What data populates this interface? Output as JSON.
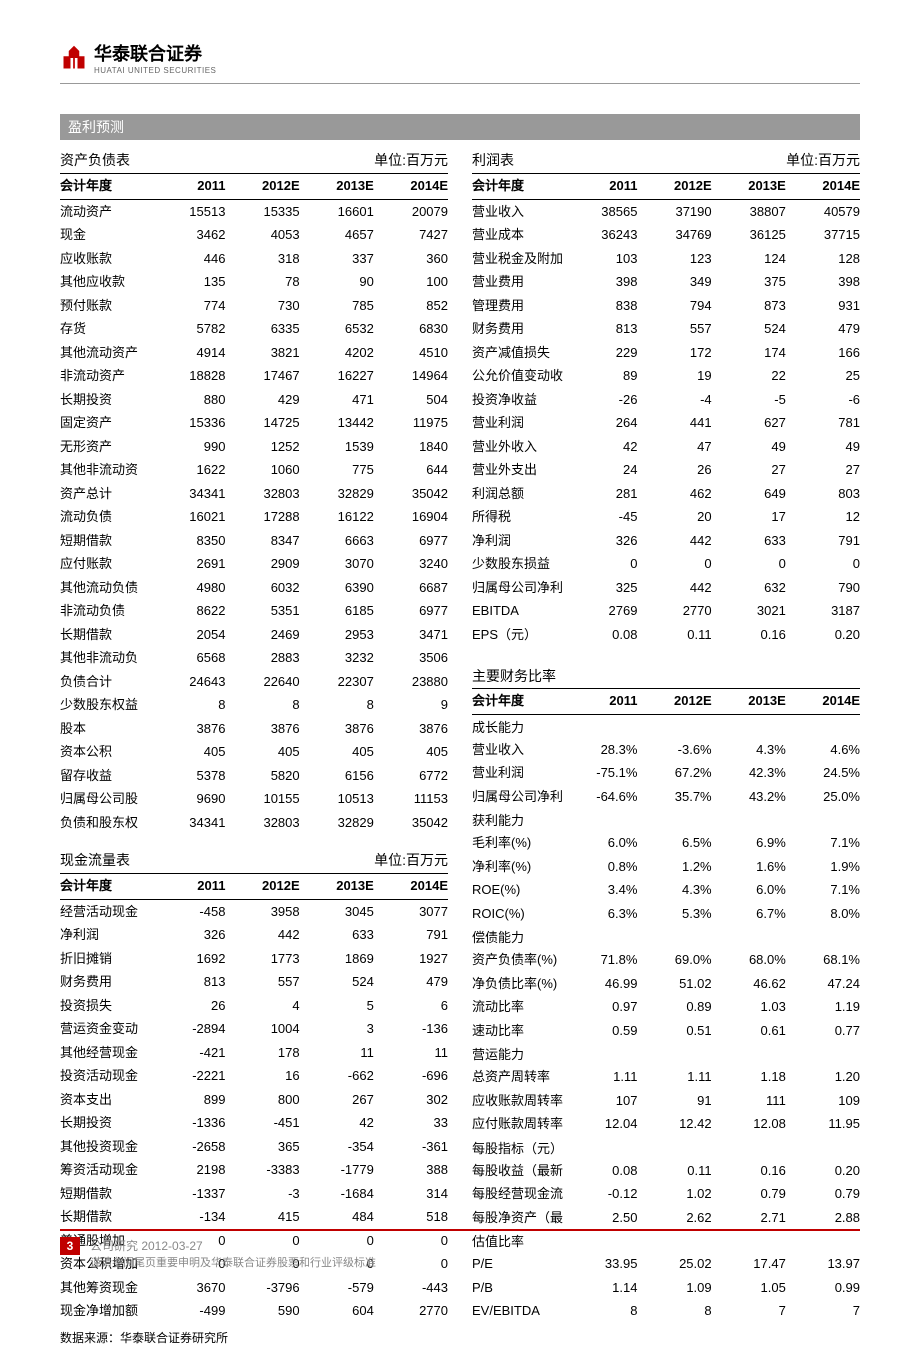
{
  "header": {
    "logo_cn": "华泰联合证券",
    "logo_en": "HUATAI UNITED SECURITIES",
    "logo_color": "#c00000"
  },
  "section_title": "盈利预测",
  "years": [
    "2011",
    "2012E",
    "2013E",
    "2014E"
  ],
  "year_label": "会计年度",
  "unit_label": "单位:百万元",
  "balance": {
    "title": "资产负债表",
    "rows": [
      [
        "流动资产",
        "15513",
        "15335",
        "16601",
        "20079"
      ],
      [
        "现金",
        "3462",
        "4053",
        "4657",
        "7427"
      ],
      [
        "应收账款",
        "446",
        "318",
        "337",
        "360"
      ],
      [
        "其他应收款",
        "135",
        "78",
        "90",
        "100"
      ],
      [
        "预付账款",
        "774",
        "730",
        "785",
        "852"
      ],
      [
        "存货",
        "5782",
        "6335",
        "6532",
        "6830"
      ],
      [
        "其他流动资产",
        "4914",
        "3821",
        "4202",
        "4510"
      ],
      [
        "非流动资产",
        "18828",
        "17467",
        "16227",
        "14964"
      ],
      [
        "长期投资",
        "880",
        "429",
        "471",
        "504"
      ],
      [
        "固定资产",
        "15336",
        "14725",
        "13442",
        "11975"
      ],
      [
        "无形资产",
        "990",
        "1252",
        "1539",
        "1840"
      ],
      [
        "其他非流动资",
        "1622",
        "1060",
        "775",
        "644"
      ],
      [
        "资产总计",
        "34341",
        "32803",
        "32829",
        "35042"
      ],
      [
        "流动负债",
        "16021",
        "17288",
        "16122",
        "16904"
      ],
      [
        "短期借款",
        "8350",
        "8347",
        "6663",
        "6977"
      ],
      [
        "应付账款",
        "2691",
        "2909",
        "3070",
        "3240"
      ],
      [
        "其他流动负债",
        "4980",
        "6032",
        "6390",
        "6687"
      ],
      [
        "非流动负债",
        "8622",
        "5351",
        "6185",
        "6977"
      ],
      [
        "长期借款",
        "2054",
        "2469",
        "2953",
        "3471"
      ],
      [
        "其他非流动负",
        "6568",
        "2883",
        "3232",
        "3506"
      ],
      [
        "负债合计",
        "24643",
        "22640",
        "22307",
        "23880"
      ],
      [
        "少数股东权益",
        "8",
        "8",
        "8",
        "9"
      ],
      [
        "股本",
        "3876",
        "3876",
        "3876",
        "3876"
      ],
      [
        "资本公积",
        "405",
        "405",
        "405",
        "405"
      ],
      [
        "留存收益",
        "5378",
        "5820",
        "6156",
        "6772"
      ],
      [
        "归属母公司股",
        "9690",
        "10155",
        "10513",
        "11153"
      ],
      [
        "负债和股东权",
        "34341",
        "32803",
        "32829",
        "35042"
      ]
    ]
  },
  "cashflow": {
    "title": "现金流量表",
    "rows": [
      [
        "经营活动现金",
        "-458",
        "3958",
        "3045",
        "3077"
      ],
      [
        "净利润",
        "326",
        "442",
        "633",
        "791"
      ],
      [
        "折旧摊销",
        "1692",
        "1773",
        "1869",
        "1927"
      ],
      [
        "财务费用",
        "813",
        "557",
        "524",
        "479"
      ],
      [
        "投资损失",
        "26",
        "4",
        "5",
        "6"
      ],
      [
        "营运资金变动",
        "-2894",
        "1004",
        "3",
        "-136"
      ],
      [
        "其他经营现金",
        "-421",
        "178",
        "11",
        "11"
      ],
      [
        "投资活动现金",
        "-2221",
        "16",
        "-662",
        "-696"
      ],
      [
        "资本支出",
        "899",
        "800",
        "267",
        "302"
      ],
      [
        "长期投资",
        "-1336",
        "-451",
        "42",
        "33"
      ],
      [
        "其他投资现金",
        "-2658",
        "365",
        "-354",
        "-361"
      ],
      [
        "筹资活动现金",
        "2198",
        "-3383",
        "-1779",
        "388"
      ],
      [
        "短期借款",
        "-1337",
        "-3",
        "-1684",
        "314"
      ],
      [
        "长期借款",
        "-134",
        "415",
        "484",
        "518"
      ],
      [
        "普通股增加",
        "0",
        "0",
        "0",
        "0"
      ],
      [
        "资本公积增加",
        "0",
        "0",
        "0",
        "0"
      ],
      [
        "其他筹资现金",
        "3670",
        "-3796",
        "-579",
        "-443"
      ],
      [
        "现金净增加额",
        "-499",
        "590",
        "604",
        "2770"
      ]
    ]
  },
  "income": {
    "title": "利润表",
    "rows": [
      [
        "营业收入",
        "38565",
        "37190",
        "38807",
        "40579"
      ],
      [
        "营业成本",
        "36243",
        "34769",
        "36125",
        "37715"
      ],
      [
        "营业税金及附加",
        "103",
        "123",
        "124",
        "128"
      ],
      [
        "营业费用",
        "398",
        "349",
        "375",
        "398"
      ],
      [
        "管理费用",
        "838",
        "794",
        "873",
        "931"
      ],
      [
        "财务费用",
        "813",
        "557",
        "524",
        "479"
      ],
      [
        "资产减值损失",
        "229",
        "172",
        "174",
        "166"
      ],
      [
        "公允价值变动收",
        "89",
        "19",
        "22",
        "25"
      ],
      [
        "投资净收益",
        "-26",
        "-4",
        "-5",
        "-6"
      ],
      [
        "营业利润",
        "264",
        "441",
        "627",
        "781"
      ],
      [
        "营业外收入",
        "42",
        "47",
        "49",
        "49"
      ],
      [
        "营业外支出",
        "24",
        "26",
        "27",
        "27"
      ],
      [
        "利润总额",
        "281",
        "462",
        "649",
        "803"
      ],
      [
        "所得税",
        "-45",
        "20",
        "17",
        "12"
      ],
      [
        "净利润",
        "326",
        "442",
        "633",
        "791"
      ],
      [
        "少数股东损益",
        "0",
        "0",
        "0",
        "0"
      ],
      [
        "归属母公司净利",
        "325",
        "442",
        "632",
        "790"
      ],
      [
        "EBITDA",
        "2769",
        "2770",
        "3021",
        "3187"
      ],
      [
        "EPS（元）",
        "0.08",
        "0.11",
        "0.16",
        "0.20"
      ]
    ]
  },
  "ratios": {
    "title": "主要财务比率",
    "sections": [
      {
        "name": "成长能力",
        "rows": [
          [
            "营业收入",
            "28.3%",
            "-3.6%",
            "4.3%",
            "4.6%"
          ],
          [
            "营业利润",
            "-75.1%",
            "67.2%",
            "42.3%",
            "24.5%"
          ],
          [
            "归属母公司净利",
            "-64.6%",
            "35.7%",
            "43.2%",
            "25.0%"
          ]
        ]
      },
      {
        "name": "获利能力",
        "rows": [
          [
            "毛利率(%)",
            "6.0%",
            "6.5%",
            "6.9%",
            "7.1%"
          ],
          [
            "净利率(%)",
            "0.8%",
            "1.2%",
            "1.6%",
            "1.9%"
          ],
          [
            "ROE(%)",
            "3.4%",
            "4.3%",
            "6.0%",
            "7.1%"
          ],
          [
            "ROIC(%)",
            "6.3%",
            "5.3%",
            "6.7%",
            "8.0%"
          ]
        ]
      },
      {
        "name": "偿债能力",
        "rows": [
          [
            "资产负债率(%)",
            "71.8%",
            "69.0%",
            "68.0%",
            "68.1%"
          ],
          [
            "净负债比率(%)",
            "46.99",
            "51.02",
            "46.62",
            "47.24"
          ],
          [
            "流动比率",
            "0.97",
            "0.89",
            "1.03",
            "1.19"
          ],
          [
            "速动比率",
            "0.59",
            "0.51",
            "0.61",
            "0.77"
          ]
        ]
      },
      {
        "name": "营运能力",
        "rows": [
          [
            "总资产周转率",
            "1.11",
            "1.11",
            "1.18",
            "1.20"
          ],
          [
            "应收账款周转率",
            "107",
            "91",
            "111",
            "109"
          ],
          [
            "应付账款周转率",
            "12.04",
            "12.42",
            "12.08",
            "11.95"
          ]
        ]
      },
      {
        "name": "每股指标（元）",
        "rows": [
          [
            "每股收益（最新",
            "0.08",
            "0.11",
            "0.16",
            "0.20"
          ],
          [
            "每股经营现金流",
            "-0.12",
            "1.02",
            "0.79",
            "0.79"
          ],
          [
            "每股净资产（最",
            "2.50",
            "2.62",
            "2.71",
            "2.88"
          ]
        ]
      },
      {
        "name": "估值比率",
        "rows": [
          [
            "P/E",
            "33.95",
            "25.02",
            "17.47",
            "13.97"
          ],
          [
            "P/B",
            "1.14",
            "1.09",
            "1.05",
            "0.99"
          ],
          [
            "EV/EBITDA",
            "8",
            "8",
            "7",
            "7"
          ]
        ]
      }
    ]
  },
  "source": "数据来源：华泰联合证券研究所",
  "footer": {
    "page": "3",
    "line1": "公司研究 2012-03-27",
    "line2": "谨请参阅尾页重要申明及华泰联合证券股票和行业评级标准"
  }
}
